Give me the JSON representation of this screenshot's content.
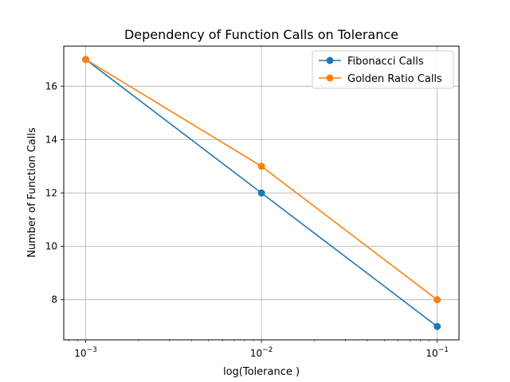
{
  "chart_data": {
    "type": "line",
    "title": "Dependency of Function Calls on Tolerance",
    "xlabel": "log(Tolerance )",
    "ylabel": "Number of Function Calls",
    "x_scale": "log",
    "x": [
      0.001,
      0.01,
      0.1
    ],
    "x_tick_labels": [
      "10",
      "10",
      "10"
    ],
    "x_tick_exponents": [
      "−3",
      "−2",
      "−1"
    ],
    "xlim": [
      0.00075,
      0.133
    ],
    "ylim": [
      6.5,
      17.5
    ],
    "y_ticks": [
      8,
      10,
      12,
      14,
      16
    ],
    "y_tick_labels": [
      "8",
      "10",
      "12",
      "14",
      "16"
    ],
    "grid": true,
    "legend_position": "top-right",
    "series": [
      {
        "name": "Fibonacci Calls",
        "values": [
          17,
          12,
          7
        ],
        "color": "#1f77b4",
        "marker": "circle"
      },
      {
        "name": "Golden Ratio Calls",
        "values": [
          17,
          13,
          8
        ],
        "color": "#ff7f0e",
        "marker": "circle"
      }
    ]
  }
}
